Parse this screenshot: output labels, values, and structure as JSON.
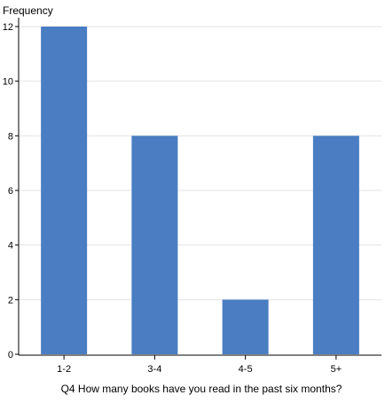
{
  "chart_data": {
    "type": "bar",
    "xlabel": "Q4 How many books have you read in the past six months?",
    "ylabel": "Frequency",
    "categories": [
      "1-2",
      "3-4",
      "4-5",
      "5+"
    ],
    "values": [
      12,
      8,
      2,
      8
    ],
    "ylim": [
      0,
      12
    ],
    "yticks": [
      0,
      2,
      4,
      6,
      8,
      10,
      12
    ],
    "grid": true,
    "colors": {
      "bar": "#4a7dc2",
      "grid": "#e3e3e3",
      "axis": "#000000"
    }
  }
}
